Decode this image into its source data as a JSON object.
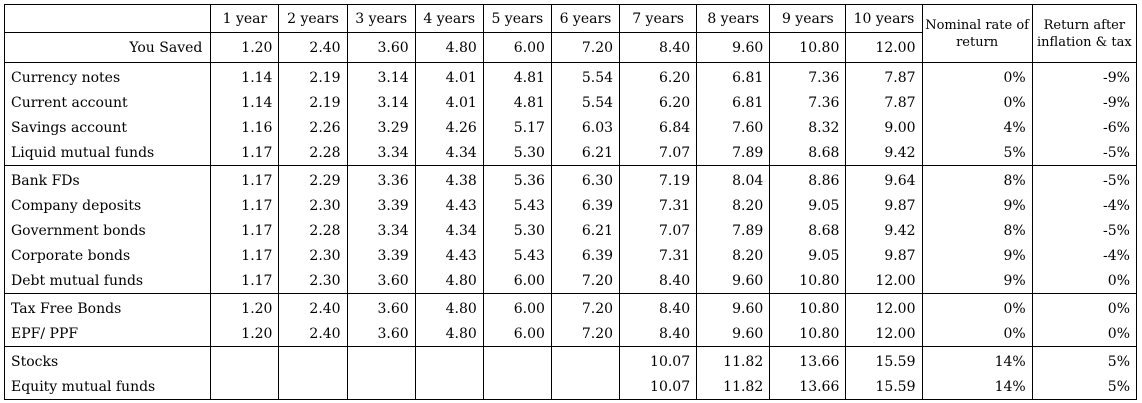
{
  "headers": {
    "label": "",
    "years": [
      "1 year",
      "2 years",
      "3 years",
      "4 years",
      "5 years",
      "6 years",
      "7 years",
      "8 years",
      "9 years",
      "10 years"
    ],
    "nominal": "Nominal rate of return",
    "after": "Return after inflation & tax"
  },
  "saved": {
    "label": "You Saved",
    "values": [
      "1.20",
      "2.40",
      "3.60",
      "4.80",
      "6.00",
      "7.20",
      "8.40",
      "9.60",
      "10.80",
      "12.00"
    ]
  },
  "groups": [
    {
      "rows": [
        {
          "label": "Currency notes",
          "values": [
            "1.14",
            "2.19",
            "3.14",
            "4.01",
            "4.81",
            "5.54",
            "6.20",
            "6.81",
            "7.36",
            "7.87"
          ],
          "nominal": "0%",
          "after": "-9%"
        },
        {
          "label": "Current account",
          "values": [
            "1.14",
            "2.19",
            "3.14",
            "4.01",
            "4.81",
            "5.54",
            "6.20",
            "6.81",
            "7.36",
            "7.87"
          ],
          "nominal": "0%",
          "after": "-9%"
        },
        {
          "label": "Savings account",
          "values": [
            "1.16",
            "2.26",
            "3.29",
            "4.26",
            "5.17",
            "6.03",
            "6.84",
            "7.60",
            "8.32",
            "9.00"
          ],
          "nominal": "4%",
          "after": "-6%"
        },
        {
          "label": "Liquid mutual funds",
          "values": [
            "1.17",
            "2.28",
            "3.34",
            "4.34",
            "5.30",
            "6.21",
            "7.07",
            "7.89",
            "8.68",
            "9.42"
          ],
          "nominal": "5%",
          "after": "-5%"
        }
      ]
    },
    {
      "rows": [
        {
          "label": "Bank FDs",
          "values": [
            "1.17",
            "2.29",
            "3.36",
            "4.38",
            "5.36",
            "6.30",
            "7.19",
            "8.04",
            "8.86",
            "9.64"
          ],
          "nominal": "8%",
          "after": "-5%"
        },
        {
          "label": "Company deposits",
          "values": [
            "1.17",
            "2.30",
            "3.39",
            "4.43",
            "5.43",
            "6.39",
            "7.31",
            "8.20",
            "9.05",
            "9.87"
          ],
          "nominal": "9%",
          "after": "-4%"
        },
        {
          "label": "Government bonds",
          "values": [
            "1.17",
            "2.28",
            "3.34",
            "4.34",
            "5.30",
            "6.21",
            "7.07",
            "7.89",
            "8.68",
            "9.42"
          ],
          "nominal": "8%",
          "after": "-5%"
        },
        {
          "label": "Corporate bonds",
          "values": [
            "1.17",
            "2.30",
            "3.39",
            "4.43",
            "5.43",
            "6.39",
            "7.31",
            "8.20",
            "9.05",
            "9.87"
          ],
          "nominal": "9%",
          "after": "-4%"
        },
        {
          "label": "Debt mutual funds",
          "values": [
            "1.17",
            "2.30",
            "3.60",
            "4.80",
            "6.00",
            "7.20",
            "8.40",
            "9.60",
            "10.80",
            "12.00"
          ],
          "nominal": "9%",
          "after": "0%"
        }
      ]
    },
    {
      "rows": [
        {
          "label": "Tax Free Bonds",
          "values": [
            "1.20",
            "2.40",
            "3.60",
            "4.80",
            "6.00",
            "7.20",
            "8.40",
            "9.60",
            "10.80",
            "12.00"
          ],
          "nominal": "0%",
          "after": "0%"
        },
        {
          "label": "EPF/ PPF",
          "values": [
            "1.20",
            "2.40",
            "3.60",
            "4.80",
            "6.00",
            "7.20",
            "8.40",
            "9.60",
            "10.80",
            "12.00"
          ],
          "nominal": "0%",
          "after": "0%"
        }
      ]
    },
    {
      "rows": [
        {
          "label": "Stocks",
          "values": [
            "",
            "",
            "",
            "",
            "",
            "",
            "10.07",
            "11.82",
            "13.66",
            "15.59"
          ],
          "nominal": "14%",
          "after": "5%"
        },
        {
          "label": "Equity mutual funds",
          "values": [
            "",
            "",
            "",
            "",
            "",
            "",
            "10.07",
            "11.82",
            "13.66",
            "15.59"
          ],
          "nominal": "14%",
          "after": "5%"
        }
      ]
    }
  ]
}
